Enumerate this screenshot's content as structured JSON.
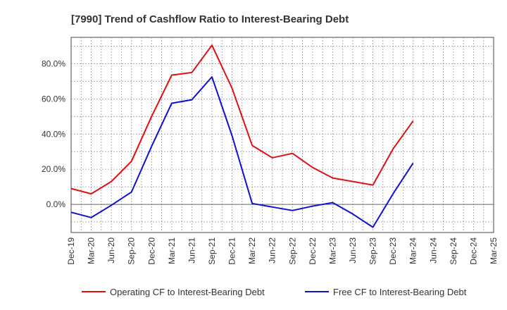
{
  "chart_data": {
    "type": "line",
    "title": "[7990]  Trend of Cashflow Ratio to Interest-Bearing Debt",
    "xlabel": "",
    "ylabel": "",
    "categories": [
      "Dec-19",
      "Mar-20",
      "Jun-20",
      "Sep-20",
      "Dec-20",
      "Mar-21",
      "Jun-21",
      "Sep-21",
      "Dec-21",
      "Mar-22",
      "Jun-22",
      "Sep-22",
      "Dec-22",
      "Mar-23",
      "Jun-23",
      "Sep-23",
      "Dec-23",
      "Mar-24",
      "Jun-24",
      "Sep-24",
      "Dec-24",
      "Mar-25"
    ],
    "ylim": [
      -16,
      95
    ],
    "yticks": [
      0,
      20,
      40,
      60,
      80
    ],
    "ytick_labels": [
      "0.0%",
      "20.0%",
      "40.0%",
      "60.0%",
      "80.0%"
    ],
    "grid": true,
    "legend_position": "bottom",
    "series": [
      {
        "name": "Operating CF to Interest-Bearing Debt",
        "color": "#dd1111",
        "values": [
          9,
          6,
          13,
          24.5,
          50,
          73.5,
          75,
          90.5,
          66,
          33.5,
          26.5,
          29,
          21,
          15,
          13,
          11,
          31.5,
          47.5,
          null,
          null,
          null,
          null
        ]
      },
      {
        "name": "Free CF to Interest-Bearing Debt",
        "color": "#1111cc",
        "values": [
          -4.5,
          -7.5,
          -0.5,
          7,
          33,
          57.5,
          59.5,
          72.5,
          39,
          0.5,
          -1.5,
          -3.5,
          -1,
          1,
          -5.5,
          -13,
          6,
          23.5,
          null,
          null,
          null,
          null
        ]
      }
    ]
  }
}
